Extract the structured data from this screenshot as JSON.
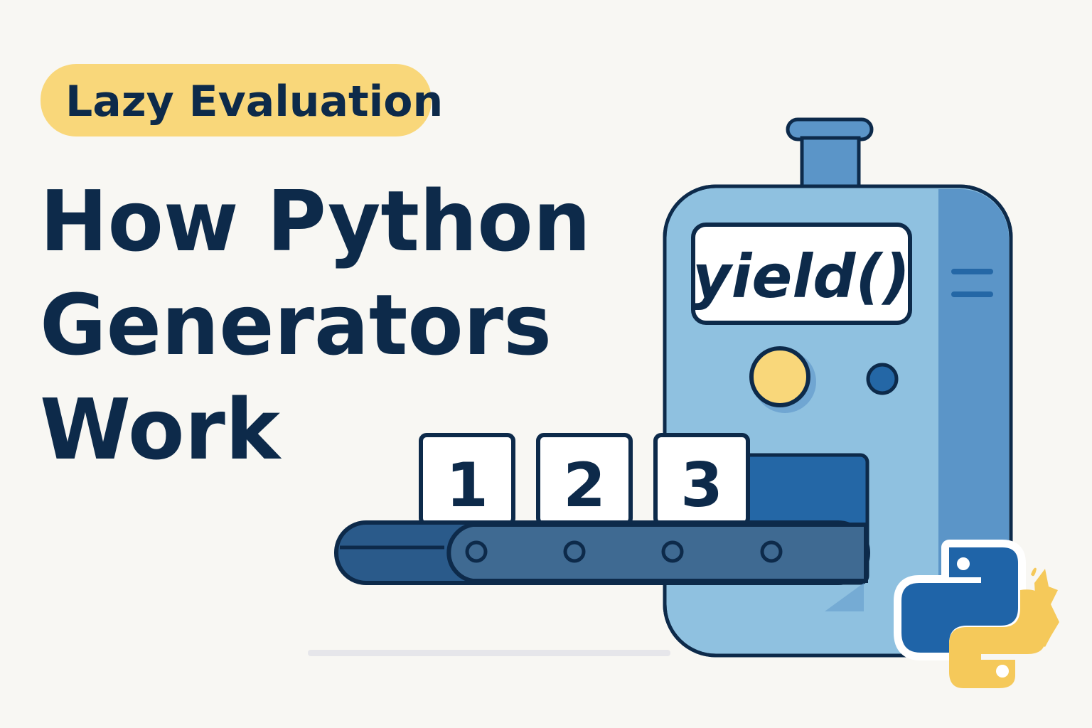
{
  "badge": {
    "label": "Lazy Evaluation"
  },
  "title": {
    "line1": "How Python",
    "line2": "Generators",
    "line3": "Work"
  },
  "machine": {
    "label": "yield()"
  },
  "items": [
    {
      "label": "1"
    },
    {
      "label": "2"
    },
    {
      "label": "3"
    }
  ],
  "logo": {
    "name": "python-logo"
  },
  "colors": {
    "background": "#f8f7f3",
    "navy": "#0d2a4a",
    "badge": "#f9d77a",
    "machine_light": "#8fc1e0",
    "machine_dark": "#5b95c8",
    "slot": "#2467a6",
    "python_blue": "#1f64a8",
    "python_yellow": "#f5c95a"
  }
}
